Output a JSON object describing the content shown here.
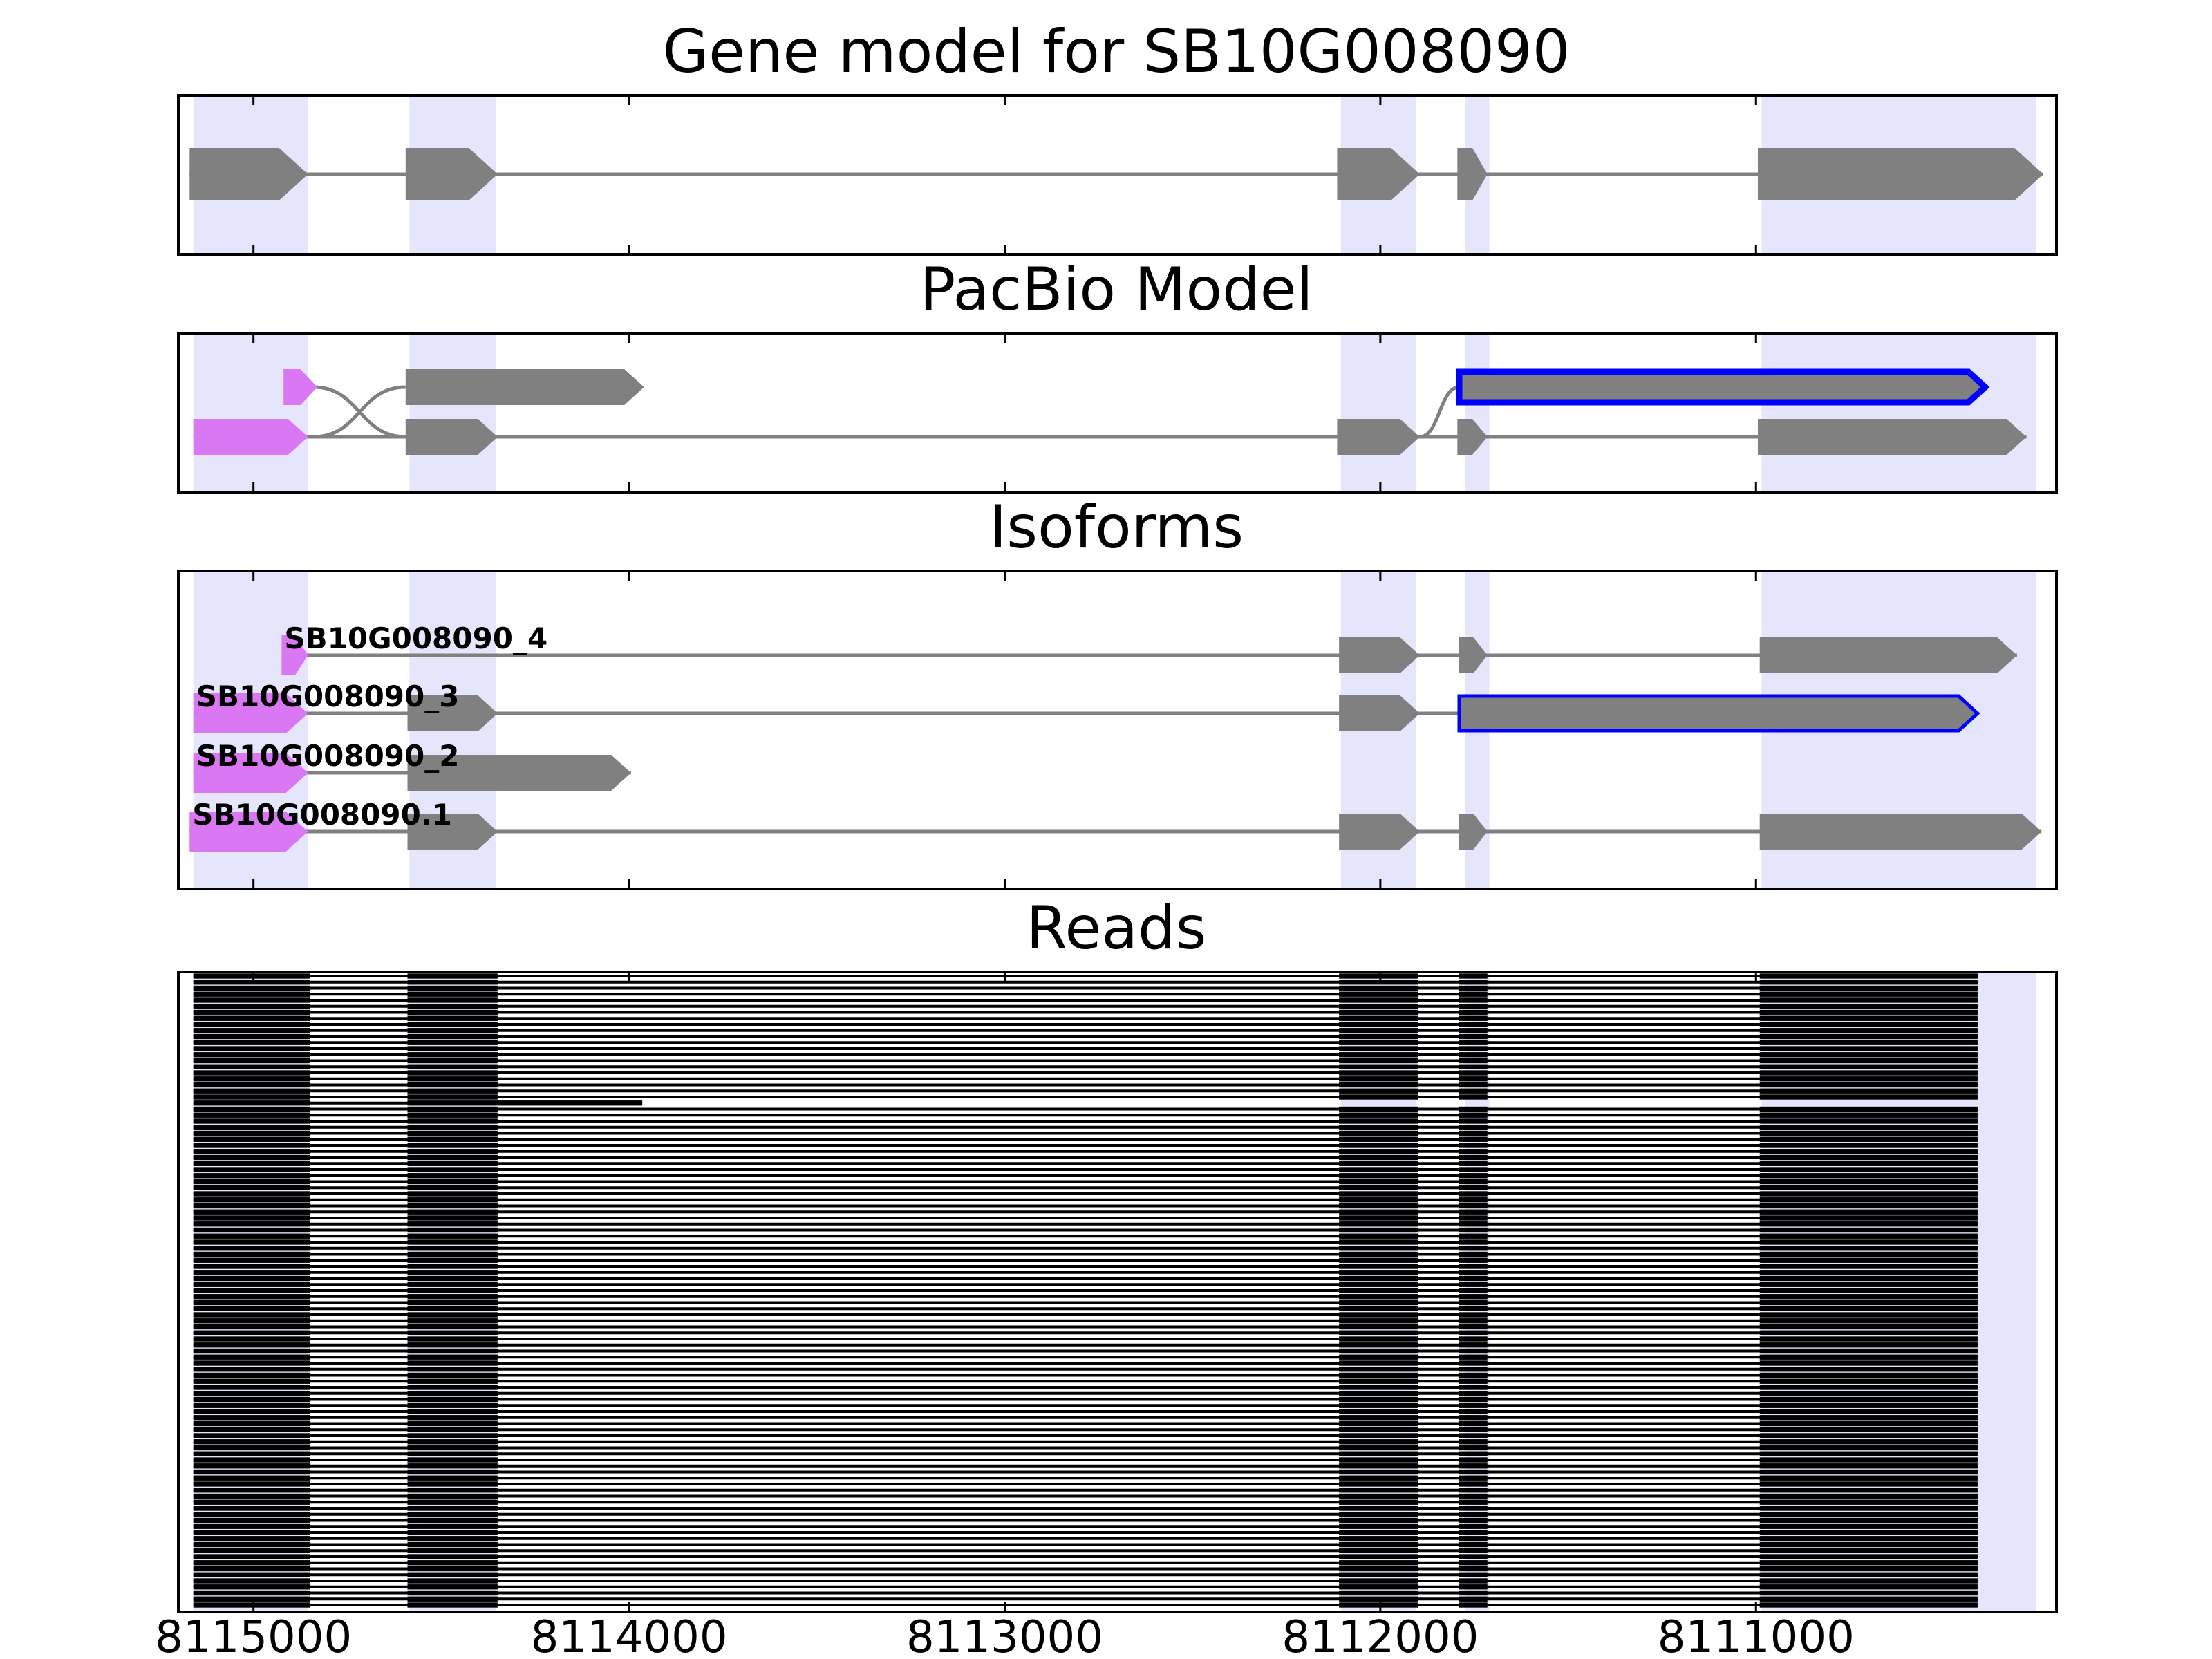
{
  "titles": {
    "gene_model": "Gene model for SB10G008090",
    "pacbio": "PacBio Model",
    "isoforms": "Isoforms",
    "reads": "Reads"
  },
  "colors": {
    "shade": "#e5e5fb",
    "exon": "#808080",
    "utr": "#da77f2",
    "highlight_border": "#0000ff",
    "read": "#000000",
    "intron": "#808080"
  },
  "chart_data": {
    "type": "gene-structure",
    "x_axis": {
      "reversed": true,
      "lim": [
        8115200,
        8110200
      ],
      "ticks": [
        8115000,
        8114000,
        8113000,
        8112000,
        8111000
      ],
      "tick_labels": [
        "8115000",
        "8114000",
        "8113000",
        "8112000",
        "8111000"
      ]
    },
    "exon_shading": [
      [
        8115160,
        8114855
      ],
      [
        8114585,
        8114355
      ],
      [
        8112105,
        8111905
      ],
      [
        8111775,
        8111710
      ],
      [
        8110985,
        8110255
      ]
    ],
    "gene_model": [
      [
        8115170,
        8114855
      ],
      [
        8114595,
        8114350
      ],
      [
        8112115,
        8111895
      ],
      [
        8111795,
        8111715
      ],
      [
        8110995,
        8110235
      ]
    ],
    "pacbio_model": {
      "upper": {
        "utr": [
          [
            8114920,
            8114830
          ]
        ],
        "exons": [
          [
            8114595,
            8113960
          ],
          [
            8111790,
            8110390
          ]
        ],
        "highlighted_exon": [
          8111790,
          8110390
        ]
      },
      "lower": {
        "utr": [
          [
            8115160,
            8114855
          ]
        ],
        "exons": [
          [
            8114595,
            8114350
          ],
          [
            8112115,
            8111895
          ],
          [
            8111795,
            8111715
          ],
          [
            8110995,
            8110280
          ]
        ]
      }
    },
    "isoforms": [
      {
        "name": "SB10G008090_4",
        "utr": [
          [
            8114925,
            8114855
          ]
        ],
        "exons": [
          [
            8112110,
            8111895
          ],
          [
            8111790,
            8111715
          ],
          [
            8110990,
            8110305
          ]
        ]
      },
      {
        "name": "SB10G008090_3",
        "utr": [
          [
            8115160,
            8114855
          ]
        ],
        "exons": [
          [
            8114590,
            8114350
          ],
          [
            8112110,
            8111895
          ]
        ],
        "highlighted": [
          8111790,
          8110410
        ]
      },
      {
        "name": "SB10G008090_2",
        "utr": [
          [
            8115160,
            8114855
          ]
        ],
        "exons": [
          [
            8114590,
            8113995
          ]
        ]
      },
      {
        "name": "SB10G008090.1",
        "utr": [
          [
            8115170,
            8114855
          ]
        ],
        "exons": [
          [
            8114590,
            8114350
          ],
          [
            8112110,
            8111895
          ],
          [
            8111790,
            8111715
          ],
          [
            8110990,
            8110240
          ]
        ]
      }
    ],
    "reads": {
      "count": 105,
      "groups": [
        {
          "count": 21,
          "blocks": [
            [
              8115160,
              8114850
            ],
            [
              8114590,
              8114350
            ],
            [
              8112110,
              8111900
            ],
            [
              8111790,
              8111715
            ],
            [
              8110990,
              8110410
            ]
          ]
        },
        {
          "count": 1,
          "blocks": [
            [
              8115160,
              8114850
            ],
            [
              8114590,
              8113965
            ]
          ]
        },
        {
          "count": 83,
          "blocks": [
            [
              8115160,
              8114850
            ],
            [
              8114590,
              8114350
            ],
            [
              8112110,
              8111900
            ],
            [
              8111790,
              8111715
            ],
            [
              8110990,
              8110410
            ]
          ]
        }
      ]
    }
  }
}
